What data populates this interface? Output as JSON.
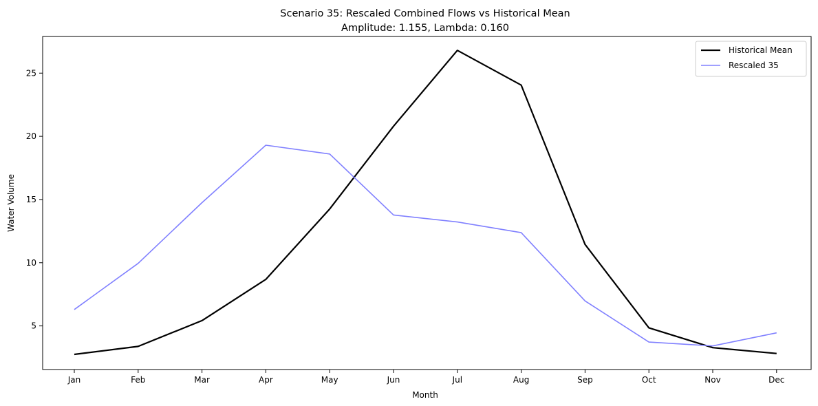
{
  "chart_data": {
    "type": "line",
    "title": "Scenario 35: Rescaled Combined Flows vs Historical Mean",
    "subtitle": "Amplitude: 1.155, Lambda: 0.160",
    "xlabel": "Month",
    "ylabel": "Water Volume",
    "categories": [
      "Jan",
      "Feb",
      "Mar",
      "Apr",
      "May",
      "Jun",
      "Jul",
      "Aug",
      "Sep",
      "Oct",
      "Nov",
      "Dec"
    ],
    "ylim": [
      1.55,
      27.9
    ],
    "yticks": [
      5,
      10,
      15,
      20,
      25
    ],
    "grid": false,
    "legend_position": "top-right",
    "series": [
      {
        "name": "Historical Mean",
        "color": "#000000",
        "values": [
          2.75,
          3.38,
          5.42,
          8.68,
          14.25,
          20.8,
          26.8,
          24.05,
          11.45,
          4.85,
          3.28,
          2.82
        ]
      },
      {
        "name": "Rescaled 35",
        "color": "#8080ff",
        "values": [
          6.3,
          9.95,
          14.75,
          19.3,
          18.6,
          13.78,
          13.22,
          12.38,
          6.98,
          3.72,
          3.42,
          4.45
        ]
      }
    ]
  }
}
